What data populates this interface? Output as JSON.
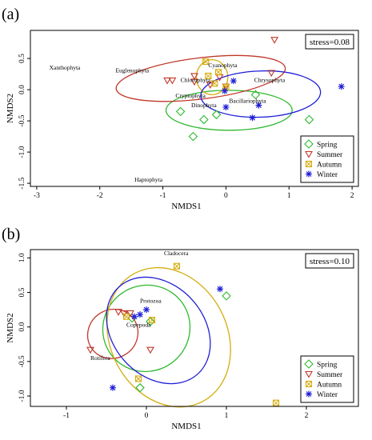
{
  "chart_data": [
    {
      "panel_label": "(a)",
      "type": "scatter",
      "xlabel": "NMDS1",
      "ylabel": "NMDS2",
      "xlim": [
        -3.1,
        2.1
      ],
      "ylim": [
        -1.55,
        0.95
      ],
      "xticks": [
        "-3",
        "-2",
        "-1",
        "0",
        "1",
        "2"
      ],
      "xtick_values": [
        -3,
        -2,
        -1,
        0,
        1,
        2
      ],
      "yticks": [
        "-1.5",
        "-1.0",
        "-0.5",
        "0.0",
        "0.5"
      ],
      "ytick_values": [
        -1.5,
        -1.0,
        -0.5,
        0.0,
        0.5
      ],
      "stress_text": "stress=0.08",
      "legend_position": "bottom-right",
      "series": [
        {
          "name": "Spring",
          "marker": "diamond",
          "color": "#2eb82e",
          "points": [
            [
              -0.72,
              -0.35
            ],
            [
              -0.52,
              -0.75
            ],
            [
              -0.35,
              -0.48
            ],
            [
              -0.15,
              -0.4
            ],
            [
              0.47,
              -0.08
            ],
            [
              1.32,
              -0.48
            ]
          ]
        },
        {
          "name": "Summer",
          "marker": "triangle-down",
          "color": "#c0392b",
          "points": [
            [
              -0.93,
              0.15
            ],
            [
              -0.85,
              0.15
            ],
            [
              -0.5,
              0.13
            ],
            [
              -0.5,
              0.22
            ],
            [
              -0.25,
              0.08
            ],
            [
              -0.1,
              0.2
            ],
            [
              0.0,
              0.05
            ],
            [
              0.72,
              0.27
            ],
            [
              0.77,
              0.8
            ]
          ]
        },
        {
          "name": "Autumn",
          "marker": "square-x",
          "color": "#d4ac0d",
          "points": [
            [
              -0.32,
              0.45
            ],
            [
              -0.28,
              0.22
            ],
            [
              -0.18,
              0.1
            ],
            [
              0.0,
              0.04
            ],
            [
              -0.12,
              0.28
            ]
          ]
        },
        {
          "name": "Winter",
          "marker": "asterisk",
          "color": "#1f1fd6",
          "points": [
            [
              -0.02,
              -0.02
            ],
            [
              0.0,
              -0.28
            ],
            [
              0.12,
              0.14
            ],
            [
              0.42,
              -0.45
            ],
            [
              0.52,
              -0.25
            ],
            [
              1.83,
              0.05
            ]
          ]
        }
      ],
      "ellipses": [
        {
          "series": "Spring",
          "cx": 0.05,
          "cy": -0.33,
          "rx": 1.0,
          "ry": 0.32,
          "angle_deg": 0
        },
        {
          "series": "Summer",
          "cx": -0.4,
          "cy": 0.18,
          "rx": 1.35,
          "ry": 0.33,
          "angle_deg": 7
        },
        {
          "series": "Autumn",
          "cx": -0.22,
          "cy": 0.2,
          "rx": 0.25,
          "ry": 0.28,
          "angle_deg": 0
        },
        {
          "series": "Winter",
          "cx": 0.55,
          "cy": -0.07,
          "rx": 0.95,
          "ry": 0.37,
          "angle_deg": 2
        }
      ],
      "annotations": [
        {
          "text": "Xanthophyta",
          "x": -2.8,
          "y": 0.32
        },
        {
          "text": "Euglenophyta",
          "x": -1.75,
          "y": 0.28
        },
        {
          "text": "Cyanophyta",
          "x": -0.28,
          "y": 0.36
        },
        {
          "text": "Chlorophyta",
          "x": -0.72,
          "y": 0.12
        },
        {
          "text": "Chrysophyta",
          "x": 0.45,
          "y": 0.12
        },
        {
          "text": "Cryptophyta",
          "x": -0.8,
          "y": -0.13
        },
        {
          "text": "Dinophyta",
          "x": -0.55,
          "y": -0.28
        },
        {
          "text": "Bacillariophyta",
          "x": 0.05,
          "y": -0.21
        },
        {
          "text": "Haptophyta",
          "x": -1.45,
          "y": -1.47
        }
      ]
    },
    {
      "panel_label": "(b)",
      "type": "scatter",
      "xlabel": "NMDS1",
      "ylabel": "NMDS2",
      "xlim": [
        -1.45,
        2.65
      ],
      "ylim": [
        -1.15,
        1.12
      ],
      "xticks": [
        "-1",
        "0",
        "1",
        "2"
      ],
      "xtick_values": [
        -1,
        0,
        1,
        2
      ],
      "yticks": [
        "-1.0",
        "-0.5",
        "0.0",
        "0.5",
        "1.0"
      ],
      "ytick_values": [
        -1.0,
        -0.5,
        0.0,
        0.5,
        1.0
      ],
      "stress_text": "stress=0.10",
      "legend_position": "bottom-right",
      "series": [
        {
          "name": "Spring",
          "marker": "diamond",
          "color": "#2eb82e",
          "points": [
            [
              -0.18,
              0.13
            ],
            [
              -0.08,
              -0.88
            ],
            [
              0.05,
              0.08
            ],
            [
              1.0,
              0.45
            ]
          ]
        },
        {
          "name": "Summer",
          "marker": "triangle-down",
          "color": "#c0392b",
          "points": [
            [
              -0.7,
              -0.33
            ],
            [
              -0.35,
              0.22
            ],
            [
              -0.28,
              0.2
            ],
            [
              -0.2,
              0.2
            ],
            [
              0.05,
              -0.33
            ]
          ]
        },
        {
          "name": "Autumn",
          "marker": "square-x",
          "color": "#d4ac0d",
          "points": [
            [
              -0.25,
              0.15
            ],
            [
              -0.1,
              -0.75
            ],
            [
              0.07,
              0.1
            ],
            [
              0.38,
              0.88
            ],
            [
              1.62,
              -1.1
            ]
          ]
        },
        {
          "name": "Winter",
          "marker": "asterisk",
          "color": "#1f1fd6",
          "points": [
            [
              -0.42,
              -0.88
            ],
            [
              -0.15,
              0.15
            ],
            [
              -0.08,
              0.18
            ],
            [
              0.0,
              0.25
            ],
            [
              0.92,
              0.55
            ]
          ]
        }
      ],
      "ellipses": [
        {
          "series": "Spring",
          "cx": 0.0,
          "cy": -0.02,
          "rx": 0.55,
          "ry": 0.62,
          "angle_deg": 35
        },
        {
          "series": "Summer",
          "cx": -0.42,
          "cy": -0.1,
          "rx": 0.32,
          "ry": 0.35,
          "angle_deg": 35
        },
        {
          "series": "Autumn",
          "cx": 0.28,
          "cy": -0.15,
          "rx": 0.73,
          "ry": 1.05,
          "angle_deg": 28
        },
        {
          "series": "Winter",
          "cx": 0.15,
          "cy": -0.05,
          "rx": 0.57,
          "ry": 0.85,
          "angle_deg": 42
        }
      ],
      "annotations": [
        {
          "text": "Cladocera",
          "x": 0.22,
          "y": 1.04
        },
        {
          "text": "Protozoa",
          "x": -0.08,
          "y": 0.35
        },
        {
          "text": "Copepoda",
          "x": -0.25,
          "y": 0.0
        },
        {
          "text": "Rotifera",
          "x": -0.7,
          "y": -0.48
        }
      ]
    }
  ]
}
